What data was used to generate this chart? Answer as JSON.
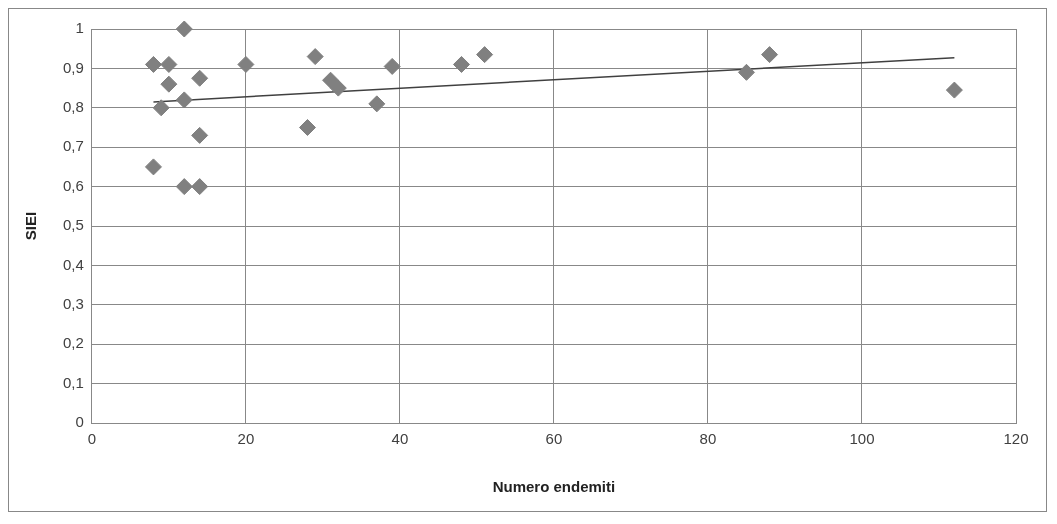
{
  "chart_data": {
    "type": "scatter",
    "xlabel": "Numero endemiti",
    "ylabel": "SIEI",
    "xlim": [
      0,
      120
    ],
    "xticks": [
      0,
      20,
      40,
      60,
      80,
      100,
      120
    ],
    "ylim": [
      0,
      1
    ],
    "yticks": [
      {
        "value": 0,
        "label": "0"
      },
      {
        "value": 0.1,
        "label": "0,1"
      },
      {
        "value": 0.2,
        "label": "0,2"
      },
      {
        "value": 0.3,
        "label": "0,3"
      },
      {
        "value": 0.4,
        "label": "0,4"
      },
      {
        "value": 0.5,
        "label": "0,5"
      },
      {
        "value": 0.6,
        "label": "0,6"
      },
      {
        "value": 0.7,
        "label": "0,7"
      },
      {
        "value": 0.8,
        "label": "0,8"
      },
      {
        "value": 0.9,
        "label": "0,9"
      },
      {
        "value": 1,
        "label": "1"
      }
    ],
    "grid": true,
    "legend": false,
    "marker": "diamond",
    "series": [
      {
        "type": "scatter",
        "color": "#808080",
        "x": [
          8,
          8,
          10,
          10,
          9,
          12,
          12,
          12,
          14,
          14,
          14,
          20,
          28,
          29,
          31,
          32,
          37,
          39,
          48,
          51,
          85,
          88,
          112
        ],
        "values": [
          0.65,
          0.91,
          0.91,
          0.86,
          0.8,
          1.0,
          0.82,
          0.6,
          0.6,
          0.73,
          0.875,
          0.91,
          0.75,
          0.93,
          0.87,
          0.85,
          0.81,
          0.905,
          0.91,
          0.935,
          0.89,
          0.935,
          0.845
        ]
      },
      {
        "type": "line",
        "color": "#404040",
        "x": [
          8,
          112
        ],
        "values": [
          0.815,
          0.927
        ],
        "marker": "none"
      }
    ]
  }
}
